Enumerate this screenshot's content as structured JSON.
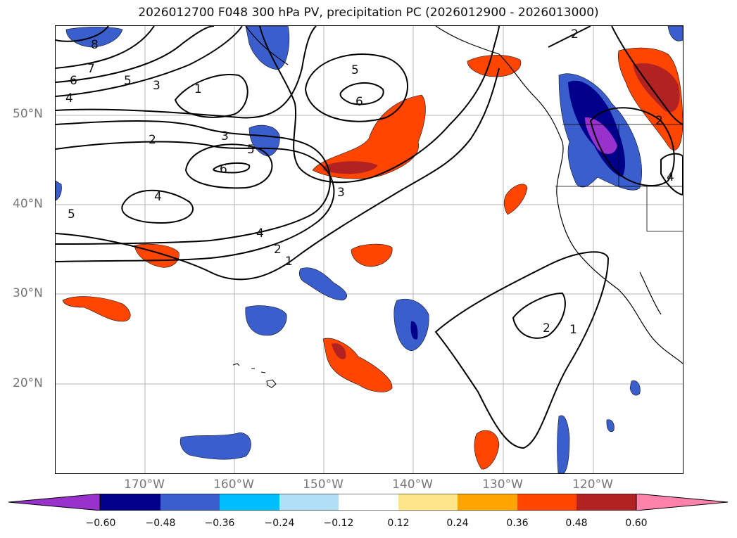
{
  "title": "2026012700 F048 300 hPa PV, precipitation PC (2026012900 - 2026013000)",
  "lat_ticks": [
    "50°N",
    "40°N",
    "30°N",
    "20°N"
  ],
  "lon_ticks": [
    "170°W",
    "160°W",
    "150°W",
    "140°W",
    "130°W",
    "120°W"
  ],
  "colorbar": {
    "ticks": [
      "−0.60",
      "−0.48",
      "−0.36",
      "−0.24",
      "−0.12",
      "0.12",
      "0.24",
      "0.36",
      "0.48",
      "0.60"
    ],
    "colors": [
      "#9932cc",
      "#00008b",
      "#3a5fcd",
      "#00bfff",
      "#b0e0f6",
      "#ffffff",
      "#fde68a",
      "#ffa500",
      "#ff4500",
      "#b22222",
      "#ff82ab"
    ]
  },
  "contour_labels": [
    "8",
    "7",
    "6",
    "5",
    "4",
    "3",
    "1",
    "5",
    "6",
    "2",
    "3",
    "5",
    "6",
    "4",
    "5",
    "3",
    "4",
    "2",
    "1",
    "2",
    "1",
    "2",
    "2",
    "4"
  ],
  "colors": {
    "contour": "#000000",
    "grid": "#b4b4b4",
    "axis_text": "#777777"
  }
}
